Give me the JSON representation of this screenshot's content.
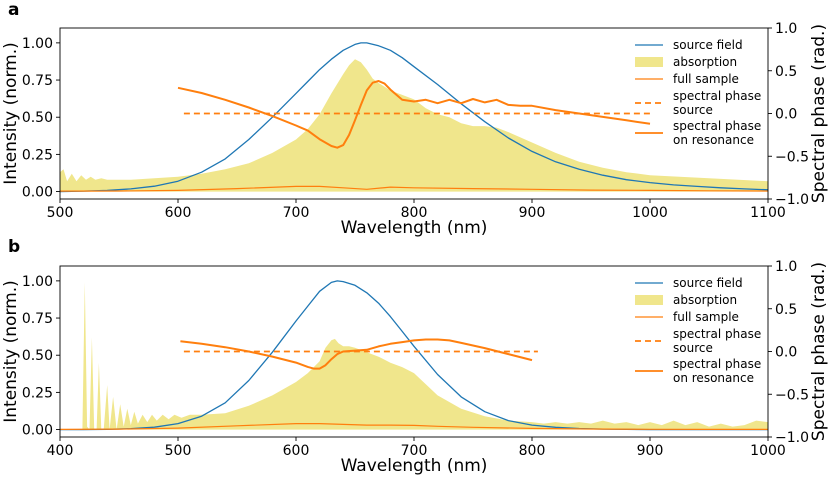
{
  "chart_data": [
    {
      "panel": "a",
      "type": "line",
      "xlabel": "Wavelength (nm)",
      "ylabel": "Intensity (norm.)",
      "y2label": "Spectral phase (rad.)",
      "xlim": [
        500,
        1100
      ],
      "ylim": [
        -0.05,
        1.1
      ],
      "y2lim": [
        -1.0,
        1.0
      ],
      "xticks": [
        "500",
        "600",
        "700",
        "800",
        "900",
        "1000",
        "1100"
      ],
      "yticks": [
        "0.00",
        "0.25",
        "0.50",
        "0.75",
        "1.00"
      ],
      "y2ticks": [
        "−1.0",
        "−0.5",
        "0.0",
        "0.5",
        "1.0"
      ],
      "legend": [
        "source field",
        "absorption",
        "full sample",
        "spectral phase source",
        "spectral phase on resonance"
      ],
      "legend_lines": [
        [
          "source field"
        ],
        [
          "absorption"
        ],
        [
          "full sample"
        ],
        [
          "spectral phase",
          "source"
        ],
        [
          "spectral phase",
          "on resonance"
        ]
      ],
      "series": [
        {
          "name": "source field",
          "axis": "left",
          "kind": "line",
          "color": "#1f77b4",
          "x": [
            500,
            520,
            540,
            560,
            580,
            600,
            620,
            640,
            660,
            680,
            700,
            710,
            720,
            730,
            740,
            750,
            755,
            760,
            770,
            780,
            790,
            800,
            820,
            840,
            860,
            880,
            900,
            920,
            940,
            960,
            980,
            1000,
            1020,
            1040,
            1060,
            1080,
            1100
          ],
          "y": [
            0.0,
            0.003,
            0.008,
            0.018,
            0.036,
            0.07,
            0.13,
            0.22,
            0.35,
            0.5,
            0.66,
            0.74,
            0.82,
            0.89,
            0.95,
            0.99,
            1.0,
            1.0,
            0.98,
            0.95,
            0.9,
            0.84,
            0.72,
            0.59,
            0.47,
            0.36,
            0.27,
            0.2,
            0.15,
            0.11,
            0.08,
            0.06,
            0.045,
            0.035,
            0.025,
            0.018,
            0.012
          ]
        },
        {
          "name": "absorption",
          "axis": "left",
          "kind": "area",
          "color": "#f0e68c",
          "x": [
            500,
            503,
            506,
            510,
            514,
            518,
            522,
            526,
            530,
            535,
            540,
            550,
            560,
            580,
            600,
            620,
            640,
            660,
            680,
            700,
            710,
            720,
            730,
            740,
            745,
            750,
            755,
            760,
            765,
            770,
            780,
            790,
            800,
            810,
            820,
            830,
            840,
            850,
            860,
            870,
            880,
            900,
            920,
            940,
            960,
            980,
            1000,
            1050,
            1100
          ],
          "y": [
            0.13,
            0.15,
            0.07,
            0.12,
            0.07,
            0.11,
            0.08,
            0.1,
            0.08,
            0.09,
            0.08,
            0.08,
            0.08,
            0.09,
            0.1,
            0.12,
            0.15,
            0.19,
            0.26,
            0.35,
            0.42,
            0.52,
            0.66,
            0.79,
            0.85,
            0.89,
            0.87,
            0.82,
            0.76,
            0.73,
            0.68,
            0.65,
            0.62,
            0.56,
            0.52,
            0.5,
            0.46,
            0.44,
            0.44,
            0.43,
            0.4,
            0.33,
            0.26,
            0.2,
            0.16,
            0.13,
            0.11,
            0.09,
            0.07
          ]
        },
        {
          "name": "full sample",
          "axis": "left",
          "kind": "line",
          "color": "#ff7f0e",
          "x": [
            500,
            550,
            600,
            650,
            700,
            720,
            740,
            760,
            780,
            800,
            850,
            900,
            950,
            1000,
            1050,
            1100
          ],
          "y": [
            0.003,
            0.004,
            0.008,
            0.02,
            0.035,
            0.035,
            0.025,
            0.015,
            0.03,
            0.025,
            0.02,
            0.015,
            0.01,
            0.008,
            0.005,
            0.004
          ]
        },
        {
          "name": "spectral phase source",
          "axis": "right",
          "kind": "dashed",
          "color": "#ff7f0e",
          "x": [
            605,
            1000
          ],
          "y": [
            0.0,
            0.0
          ]
        },
        {
          "name": "spectral phase on resonance",
          "axis": "right",
          "kind": "line",
          "color": "#ff7f0e",
          "x": [
            600,
            620,
            640,
            660,
            680,
            700,
            710,
            720,
            730,
            735,
            740,
            745,
            750,
            755,
            760,
            765,
            770,
            775,
            780,
            790,
            800,
            810,
            820,
            830,
            840,
            850,
            860,
            870,
            880,
            890,
            900,
            920,
            940,
            960,
            980,
            1000
          ],
          "y": [
            0.3,
            0.24,
            0.16,
            0.07,
            -0.03,
            -0.14,
            -0.2,
            -0.3,
            -0.38,
            -0.4,
            -0.37,
            -0.25,
            -0.08,
            0.1,
            0.27,
            0.36,
            0.38,
            0.35,
            0.28,
            0.16,
            0.14,
            0.16,
            0.12,
            0.16,
            0.12,
            0.17,
            0.13,
            0.16,
            0.1,
            0.09,
            0.09,
            0.04,
            0.0,
            -0.04,
            -0.08,
            -0.12
          ]
        }
      ]
    },
    {
      "panel": "b",
      "type": "line",
      "xlabel": "Wavelength (nm)",
      "ylabel": "Intensity (norm.)",
      "y2label": "Spectral phase (rad.)",
      "xlim": [
        400,
        1000
      ],
      "ylim": [
        -0.05,
        1.1
      ],
      "y2lim": [
        -1.0,
        1.0
      ],
      "xticks": [
        "400",
        "500",
        "600",
        "700",
        "800",
        "900",
        "1000"
      ],
      "yticks": [
        "0.00",
        "0.25",
        "0.50",
        "0.75",
        "1.00"
      ],
      "y2ticks": [
        "−1.0",
        "−0.5",
        "0.0",
        "0.5",
        "1.0"
      ],
      "legend": [
        "source field",
        "absorption",
        "full sample",
        "spectral phase source",
        "spectral phase on resonance"
      ],
      "legend_lines": [
        [
          "source field"
        ],
        [
          "absorption"
        ],
        [
          "full sample"
        ],
        [
          "spectral phase",
          "source"
        ],
        [
          "spectral phase",
          "on resonance"
        ]
      ],
      "series": [
        {
          "name": "source field",
          "axis": "left",
          "kind": "line",
          "color": "#1f77b4",
          "x": [
            400,
            420,
            440,
            460,
            480,
            500,
            520,
            540,
            560,
            580,
            600,
            610,
            620,
            630,
            635,
            640,
            650,
            660,
            670,
            680,
            690,
            700,
            720,
            740,
            760,
            780,
            800,
            820,
            840,
            860,
            880,
            900,
            920,
            940,
            960,
            980,
            1000
          ],
          "y": [
            0.0,
            0.0,
            0.002,
            0.006,
            0.016,
            0.04,
            0.09,
            0.18,
            0.33,
            0.52,
            0.73,
            0.83,
            0.93,
            0.99,
            1.0,
            0.995,
            0.97,
            0.92,
            0.85,
            0.76,
            0.66,
            0.56,
            0.37,
            0.22,
            0.12,
            0.06,
            0.03,
            0.015,
            0.007,
            0.003,
            0.001,
            0.0,
            0.0,
            0.0,
            0.0,
            0.0,
            0.0
          ]
        },
        {
          "name": "absorption",
          "axis": "left",
          "kind": "area",
          "color": "#f0e68c",
          "x": [
            400,
            419,
            421,
            423,
            425,
            427,
            429,
            431,
            433,
            435,
            437,
            440,
            442,
            445,
            448,
            451,
            454,
            457,
            460,
            463,
            466,
            470,
            474,
            478,
            482,
            487,
            492,
            497,
            503,
            510,
            520,
            540,
            560,
            580,
            600,
            610,
            620,
            625,
            630,
            633,
            636,
            640,
            645,
            650,
            660,
            670,
            680,
            690,
            700,
            720,
            740,
            760,
            780,
            800,
            810,
            820,
            830,
            840,
            850,
            860,
            870,
            880,
            890,
            900,
            910,
            920,
            930,
            940,
            950,
            960,
            970,
            980,
            990,
            1000
          ],
          "y": [
            0.0,
            0.0,
            0.99,
            0.02,
            0.0,
            0.62,
            0.0,
            0.0,
            0.45,
            0.0,
            0.0,
            0.3,
            0.0,
            0.22,
            0.0,
            0.17,
            0.02,
            0.14,
            0.03,
            0.12,
            0.04,
            0.1,
            0.05,
            0.1,
            0.06,
            0.1,
            0.07,
            0.1,
            0.08,
            0.1,
            0.1,
            0.11,
            0.16,
            0.23,
            0.32,
            0.38,
            0.46,
            0.55,
            0.6,
            0.61,
            0.58,
            0.56,
            0.56,
            0.55,
            0.52,
            0.49,
            0.45,
            0.42,
            0.38,
            0.23,
            0.14,
            0.09,
            0.06,
            0.05,
            0.04,
            0.05,
            0.04,
            0.05,
            0.04,
            0.06,
            0.04,
            0.05,
            0.03,
            0.05,
            0.03,
            0.06,
            0.03,
            0.05,
            0.02,
            0.04,
            0.02,
            0.03,
            0.06,
            0.05
          ]
        },
        {
          "name": "full sample",
          "axis": "left",
          "kind": "line",
          "color": "#ff7f0e",
          "x": [
            400,
            450,
            500,
            550,
            600,
            620,
            640,
            660,
            680,
            700,
            720,
            750,
            800,
            850,
            900,
            950,
            1000
          ],
          "y": [
            0.001,
            0.003,
            0.01,
            0.025,
            0.04,
            0.04,
            0.035,
            0.03,
            0.03,
            0.028,
            0.022,
            0.015,
            0.008,
            0.004,
            0.002,
            0.001,
            0.001
          ]
        },
        {
          "name": "spectral phase source",
          "axis": "right",
          "kind": "dashed",
          "color": "#ff7f0e",
          "x": [
            505,
            805
          ],
          "y": [
            0.0,
            0.0
          ]
        },
        {
          "name": "spectral phase on resonance",
          "axis": "right",
          "kind": "line",
          "color": "#ff7f0e",
          "x": [
            502,
            520,
            540,
            560,
            580,
            600,
            610,
            615,
            620,
            625,
            630,
            635,
            640,
            650,
            660,
            670,
            680,
            690,
            700,
            710,
            720,
            730,
            740,
            750,
            760,
            780,
            800
          ],
          "y": [
            0.12,
            0.09,
            0.05,
            0.0,
            -0.06,
            -0.13,
            -0.18,
            -0.2,
            -0.2,
            -0.16,
            -0.09,
            -0.03,
            0.0,
            0.01,
            0.02,
            0.06,
            0.09,
            0.11,
            0.13,
            0.14,
            0.14,
            0.13,
            0.1,
            0.07,
            0.04,
            -0.03,
            -0.1
          ]
        }
      ]
    }
  ]
}
